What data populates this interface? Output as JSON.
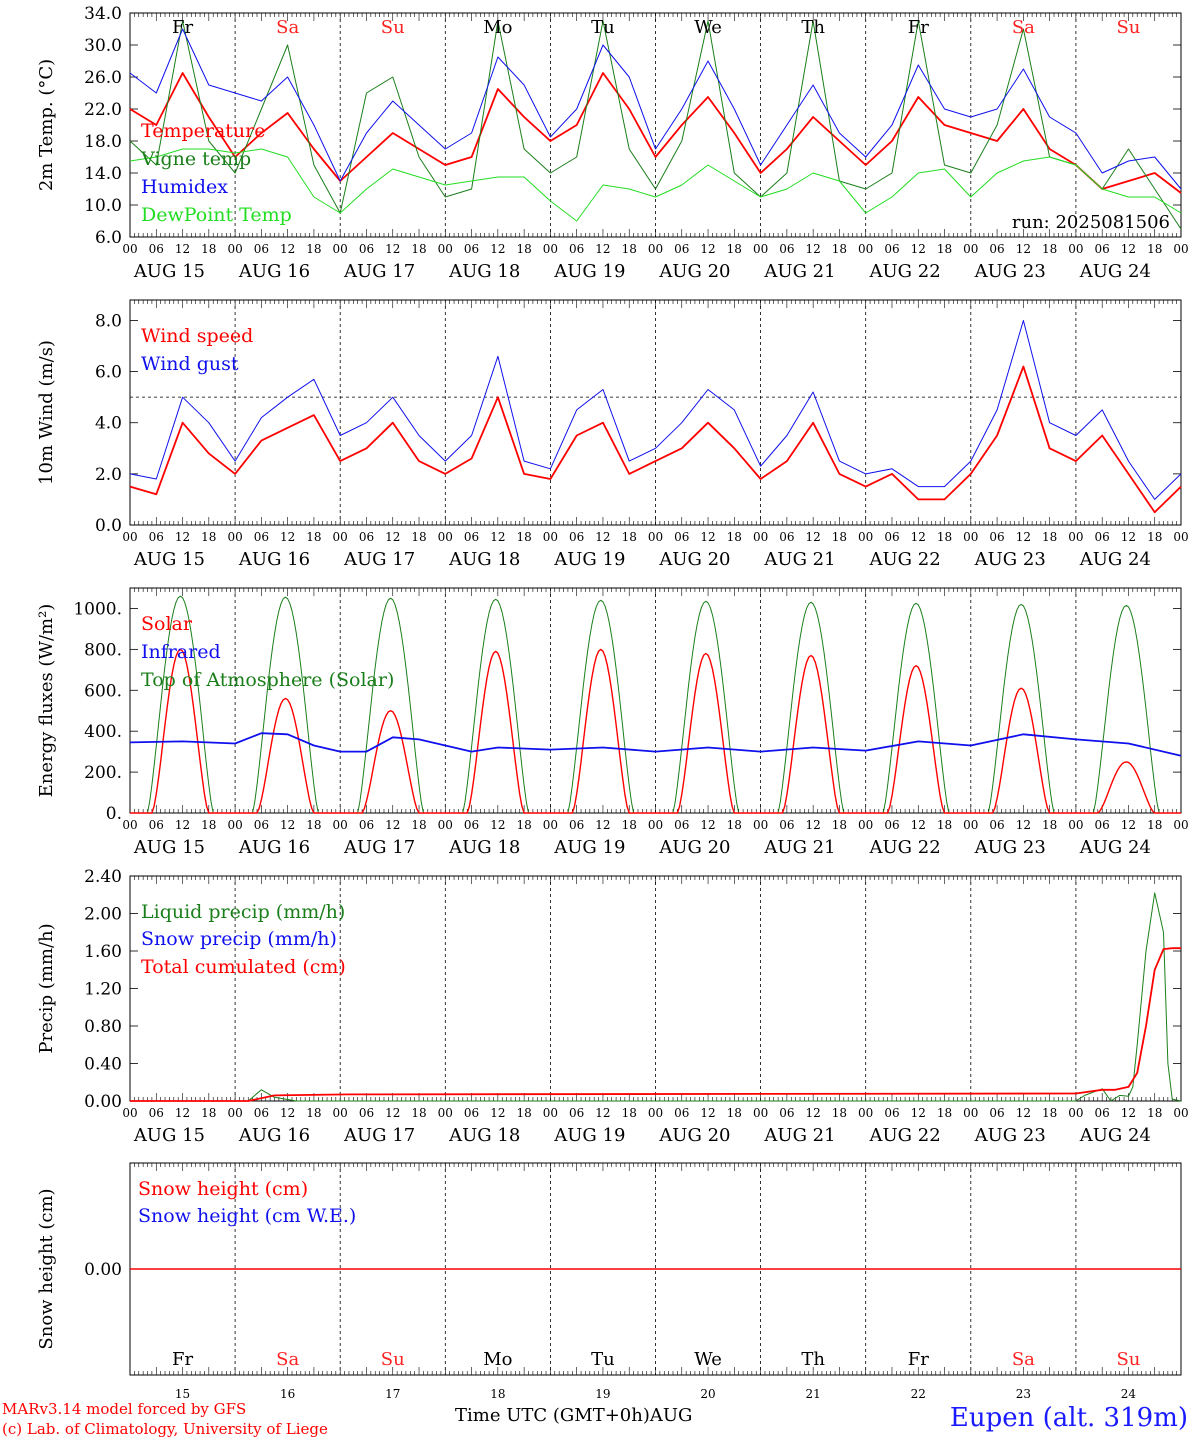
{
  "colors": {
    "red": "#ff0000",
    "dark_green": "#1a7f1a",
    "blue": "#1010ee",
    "light_green": "#22dd22",
    "day_black": "#000000",
    "day_red": "#ff2222",
    "station_blue": "#1a1aff"
  },
  "time_axis": {
    "hour_ticks": [
      "00",
      "06",
      "12",
      "18"
    ],
    "final_tick": "00",
    "dates": [
      "AUG 15",
      "AUG 16",
      "AUG 17",
      "AUG 18",
      "AUG 19",
      "AUG 20",
      "AUG 21",
      "AUG 22",
      "AUG 23",
      "AUG 24"
    ],
    "weekdays": [
      "Fr",
      "Sa",
      "Su",
      "Mo",
      "Tu",
      "We",
      "Th",
      "Fr",
      "Sa",
      "Su"
    ],
    "weekend_flags": [
      false,
      true,
      true,
      false,
      false,
      false,
      false,
      false,
      true,
      true
    ],
    "day_numbers": [
      "15",
      "16",
      "17",
      "18",
      "19",
      "20",
      "21",
      "22",
      "23",
      "24"
    ],
    "days": 10
  },
  "footer": {
    "model_line": "MARv3.14 model forced by GFS",
    "copyright_line": "(c) Lab. of Climatology, University of Liege",
    "time_label": "Time UTC (GMT+0h)",
    "month_label": "AUG",
    "station": "Eupen (alt. 319m)"
  },
  "chart_data": [
    {
      "id": "temperature",
      "type": "line",
      "ylabel": "2m Temp. (°C)",
      "ylim": [
        6.0,
        34.0
      ],
      "yticks": [
        "6.0",
        "10.0",
        "14.0",
        "18.0",
        "22.0",
        "26.0",
        "30.0",
        "34.0"
      ],
      "ytick_values": [
        6,
        10,
        14,
        18,
        22,
        26,
        30,
        34
      ],
      "annotation": "run: 2025081506",
      "legend": [
        "Temperature",
        "Vigne temp",
        "Humidex",
        "DewPoint Temp"
      ],
      "x_hours": [
        0,
        6,
        12,
        18,
        24,
        30,
        36,
        42,
        48,
        54,
        60,
        66,
        72,
        78,
        84,
        90,
        96,
        102,
        108,
        114,
        120,
        126,
        132,
        138,
        144,
        150,
        156,
        162,
        168,
        174,
        180,
        186,
        192,
        198,
        204,
        210,
        216,
        222,
        228,
        234,
        240
      ],
      "series": [
        {
          "name": "Temperature",
          "color": "#ff0000",
          "width": 1.8,
          "values": [
            22,
            20,
            26.5,
            21,
            16,
            19,
            21.5,
            17,
            13,
            16,
            19,
            17,
            15,
            16,
            24.5,
            21,
            18,
            20,
            26.5,
            22,
            16,
            20,
            23.5,
            19,
            14,
            17,
            21,
            18,
            15,
            18,
            23.5,
            20,
            19,
            18,
            22,
            17,
            15,
            12,
            13,
            14,
            11.5
          ]
        },
        {
          "name": "Vigne temp",
          "color": "#1a7f1a",
          "width": 1.0,
          "values": [
            18,
            15,
            33,
            18,
            14,
            22,
            30,
            15,
            9,
            24,
            26,
            16,
            11,
            12,
            33,
            17,
            14,
            16,
            33,
            17,
            12,
            18,
            33,
            14,
            11,
            14,
            33,
            13,
            12,
            14,
            33,
            15,
            14,
            20,
            32,
            16,
            15,
            12,
            17,
            12,
            7
          ]
        },
        {
          "name": "Humidex",
          "color": "#1010ee",
          "width": 1.0,
          "values": [
            26.5,
            24,
            32,
            25,
            24,
            23,
            26,
            20,
            13,
            19,
            23,
            20,
            17,
            19,
            28.5,
            25,
            18.5,
            22,
            30,
            26,
            17,
            22,
            28,
            22,
            15,
            20,
            25,
            19,
            16,
            20,
            27.5,
            22,
            21,
            22,
            27,
            21,
            19,
            14,
            15.5,
            16,
            12
          ]
        },
        {
          "name": "DewPoint Temp",
          "color": "#22dd22",
          "width": 1.0,
          "values": [
            15.5,
            16,
            17,
            17,
            16.5,
            17,
            16,
            11,
            9,
            12,
            14.5,
            13.5,
            12.5,
            13,
            13.5,
            13.5,
            10.5,
            8,
            12.5,
            12,
            11,
            12.5,
            15,
            13,
            11,
            12,
            14,
            13,
            9,
            11,
            14,
            14.5,
            11,
            14,
            15.5,
            16,
            15,
            12,
            11,
            11,
            9
          ]
        }
      ]
    },
    {
      "id": "wind",
      "type": "line",
      "ylabel": "10m Wind (m/s)",
      "ylim": [
        0,
        8.8
      ],
      "yticks": [
        "0.0",
        "2.0",
        "4.0",
        "6.0",
        "8.0"
      ],
      "ytick_values": [
        0,
        2,
        4,
        6,
        8
      ],
      "reference_line": 5.0,
      "legend": [
        "Wind speed",
        "Wind gust"
      ],
      "x_hours": [
        0,
        6,
        12,
        18,
        24,
        30,
        36,
        42,
        48,
        54,
        60,
        66,
        72,
        78,
        84,
        90,
        96,
        102,
        108,
        114,
        120,
        126,
        132,
        138,
        144,
        150,
        156,
        162,
        168,
        174,
        180,
        186,
        192,
        198,
        204,
        210,
        216,
        222,
        228,
        234,
        240
      ],
      "series": [
        {
          "name": "Wind speed",
          "color": "#ff0000",
          "width": 1.8,
          "values": [
            1.5,
            1.2,
            4.0,
            2.8,
            2.0,
            3.3,
            3.8,
            4.3,
            2.5,
            3.0,
            4.0,
            2.5,
            2.0,
            2.6,
            5.0,
            2.0,
            1.8,
            3.5,
            4.0,
            2.0,
            2.5,
            3.0,
            4.0,
            3.0,
            1.8,
            2.5,
            4.0,
            2.0,
            1.5,
            2.0,
            1.0,
            1.0,
            2.0,
            3.5,
            6.2,
            3.0,
            2.5,
            3.5,
            2.0,
            0.5,
            1.5
          ]
        },
        {
          "name": "Wind gust",
          "color": "#1010ee",
          "width": 1.0,
          "values": [
            2.0,
            1.8,
            5.0,
            4.0,
            2.5,
            4.2,
            5.0,
            5.7,
            3.5,
            4.0,
            5.0,
            3.5,
            2.5,
            3.5,
            6.6,
            2.5,
            2.2,
            4.5,
            5.3,
            2.5,
            3.0,
            4.0,
            5.3,
            4.5,
            2.3,
            3.5,
            5.2,
            2.5,
            2.0,
            2.2,
            1.5,
            1.5,
            2.5,
            4.5,
            8.0,
            4.0,
            3.5,
            4.5,
            2.5,
            1.0,
            2.0
          ]
        }
      ]
    },
    {
      "id": "energy",
      "type": "line",
      "ylabel": "Energy fluxes (W/m²)",
      "ylim": [
        0,
        1100
      ],
      "yticks": [
        "0.",
        "200.",
        "400.",
        "600.",
        "800.",
        "1000."
      ],
      "ytick_values": [
        0,
        200,
        400,
        600,
        800,
        1000
      ],
      "legend": [
        "Solar",
        "Infrared",
        "Top of Atmosphere (Solar)"
      ],
      "toa_peak": [
        1060,
        1055,
        1050,
        1045,
        1040,
        1035,
        1030,
        1025,
        1020,
        1015
      ],
      "solar_peak": [
        800,
        560,
        500,
        790,
        800,
        780,
        770,
        720,
        610,
        250
      ],
      "series": [
        {
          "name": "Infrared",
          "color": "#1010ee",
          "width": 1.8,
          "x_hours": [
            0,
            12,
            24,
            30,
            36,
            42,
            48,
            54,
            60,
            66,
            72,
            78,
            84,
            96,
            108,
            120,
            132,
            144,
            156,
            168,
            180,
            192,
            204,
            216,
            228,
            240
          ],
          "values": [
            345,
            350,
            340,
            390,
            385,
            330,
            300,
            300,
            370,
            360,
            330,
            300,
            320,
            310,
            320,
            300,
            320,
            300,
            320,
            305,
            350,
            330,
            385,
            360,
            340,
            280
          ]
        }
      ]
    },
    {
      "id": "precip",
      "type": "line",
      "ylabel": "Precip (mm/h)",
      "ylim": [
        0,
        2.4
      ],
      "yticks": [
        "0.00",
        "0.40",
        "0.80",
        "1.20",
        "1.60",
        "2.00",
        "2.40"
      ],
      "ytick_values": [
        0,
        0.4,
        0.8,
        1.2,
        1.6,
        2.0,
        2.4
      ],
      "legend": [
        "Liquid precip (mm/h)",
        "Snow precip (mm/h)",
        "Total cumulated (cm)"
      ],
      "series": [
        {
          "name": "Liquid precip (mm/h)",
          "color": "#1a7f1a",
          "width": 1.0,
          "x_hours": [
            0,
            27,
            30,
            33,
            38,
            216,
            218,
            222,
            224,
            226,
            228,
            229,
            230,
            232,
            234,
            236,
            237,
            238,
            240
          ],
          "values": [
            0,
            0,
            0.12,
            0.04,
            0,
            0,
            0.06,
            0.13,
            0,
            0.06,
            0.05,
            0.15,
            0.6,
            1.6,
            2.22,
            1.8,
            0.4,
            0.02,
            0
          ]
        },
        {
          "name": "Total cumulated (cm)",
          "color": "#ff0000",
          "width": 1.8,
          "x_hours": [
            0,
            27,
            33,
            50,
            216,
            222,
            225,
            228,
            230,
            232,
            234,
            236,
            238,
            240
          ],
          "values": [
            0,
            0,
            0.06,
            0.07,
            0.08,
            0.12,
            0.12,
            0.15,
            0.3,
            0.8,
            1.4,
            1.62,
            1.63,
            1.63
          ]
        }
      ]
    },
    {
      "id": "snow",
      "type": "line",
      "ylabel": "Snow height (cm)",
      "ylim": [
        -1,
        1
      ],
      "yticks": [
        "0.00"
      ],
      "ytick_values": [
        0
      ],
      "legend": [
        "Snow height (cm)",
        "Snow height (cm W.E.)"
      ],
      "series": [
        {
          "name": "Snow height (cm)",
          "color": "#ff0000",
          "width": 1.5,
          "x_hours": [
            0,
            240
          ],
          "values": [
            0,
            0
          ]
        }
      ]
    }
  ]
}
